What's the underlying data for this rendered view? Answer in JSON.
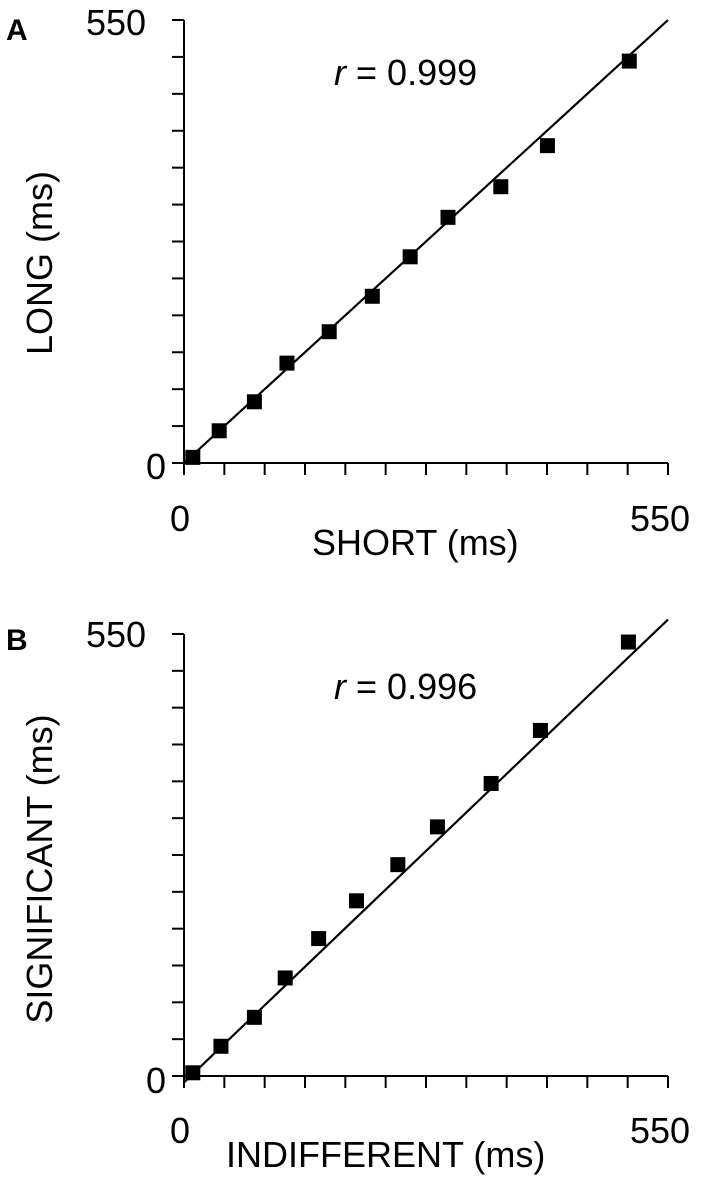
{
  "chart_data": [
    {
      "type": "scatter",
      "panel_label": "A",
      "xlabel": "SHORT (ms)",
      "ylabel": "LONG (ms)",
      "xlim": [
        0,
        550
      ],
      "ylim": [
        0,
        550
      ],
      "xtick_labels": [
        "0",
        "550"
      ],
      "ytick_labels": [
        "0",
        "550"
      ],
      "r_symbol": "r",
      "r_text": "= 0.999",
      "fit_line": {
        "x": [
          0,
          550
        ],
        "y": [
          0,
          550
        ]
      },
      "points": {
        "x": [
          10,
          40,
          80,
          117,
          165,
          214,
          257,
          300,
          360,
          413,
          506
        ],
        "y": [
          7,
          40,
          76,
          124,
          163,
          207,
          256,
          305,
          343,
          394,
          499
        ]
      },
      "grid": false,
      "legend": "none"
    },
    {
      "type": "scatter",
      "panel_label": "B",
      "xlabel": "INDIFFERENT (ms)",
      "ylabel": "SIGNIFICANT (ms)",
      "xlim": [
        0,
        550
      ],
      "ylim": [
        0,
        550
      ],
      "xtick_labels": [
        "0",
        "550"
      ],
      "ytick_labels": [
        "0",
        "550"
      ],
      "r_symbol": "r",
      "r_text": "= 0.996",
      "fit_line": {
        "x": [
          0,
          550
        ],
        "y": [
          -8,
          568
        ]
      },
      "points": {
        "x": [
          10,
          42,
          80,
          115,
          153,
          196,
          243,
          288,
          349,
          405,
          505
        ],
        "y": [
          4,
          37,
          73,
          122,
          171,
          218,
          263,
          310,
          364,
          430,
          540
        ]
      },
      "grid": false,
      "legend": "none"
    }
  ]
}
